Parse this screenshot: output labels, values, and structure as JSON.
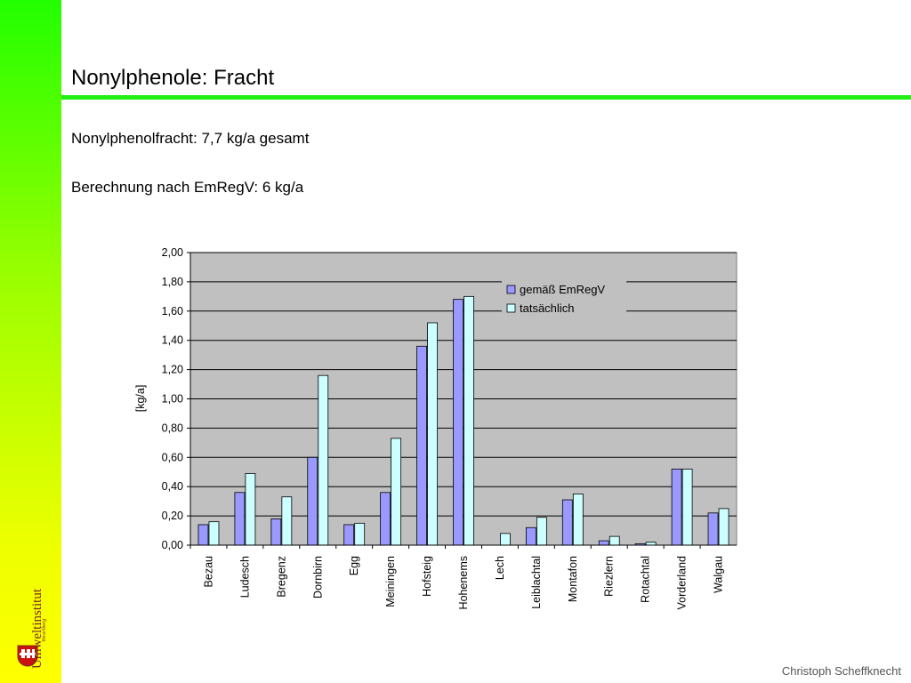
{
  "slide": {
    "title": "Nonylphenole: Fracht",
    "bullets": [
      "Nonylphenolfracht: 7,7 kg/a gesamt",
      "Berechnung nach EmRegV: 6 kg/a"
    ],
    "footer": "Christoph Scheffknecht",
    "logo": {
      "name": "Umweltinstitut",
      "subtitle": "Vorarlberg",
      "icon": "vorarlberg-coat-of-arms-icon"
    }
  },
  "colors": {
    "sidebar_top": "#22ff00",
    "sidebar_bottom": "#ffff00",
    "rule": "#22ee11",
    "plot_bg": "#c0c0c0",
    "series1": "#9999ff",
    "series2": "#ccffff"
  },
  "chart_data": {
    "type": "bar",
    "ylabel": "[kg/a]",
    "ylim": [
      0,
      2
    ],
    "yticks": [
      "0,00",
      "0,20",
      "0,40",
      "0,60",
      "0,80",
      "1,00",
      "1,20",
      "1,40",
      "1,60",
      "1,80",
      "2,00"
    ],
    "yticks_raw": [
      0.0,
      0.2,
      0.4,
      0.6,
      0.8,
      1.0,
      1.2,
      1.4,
      1.6,
      1.8,
      2.0
    ],
    "grid": true,
    "legend_position": "top-right",
    "categories": [
      "Bezau",
      "Ludesch",
      "Bregenz",
      "Dornbirn",
      "Egg",
      "Meiningen",
      "Hofsteig",
      "Hohenems",
      "Lech",
      "Leiblachtal",
      "Montafon",
      "Riezlern",
      "Rotachtal",
      "Vorderland",
      "Walgau"
    ],
    "series": [
      {
        "name": "gemäß EmRegV",
        "color": "#9999ff",
        "values": [
          0.14,
          0.36,
          0.18,
          0.6,
          0.14,
          0.36,
          1.36,
          1.68,
          0.0,
          0.12,
          0.31,
          0.03,
          0.01,
          0.52,
          0.22
        ]
      },
      {
        "name": "tatsächlich",
        "color": "#ccffff",
        "values": [
          0.16,
          0.49,
          0.33,
          1.16,
          0.15,
          0.73,
          1.52,
          1.7,
          0.08,
          0.19,
          0.35,
          0.06,
          0.02,
          0.52,
          0.25
        ]
      }
    ]
  }
}
